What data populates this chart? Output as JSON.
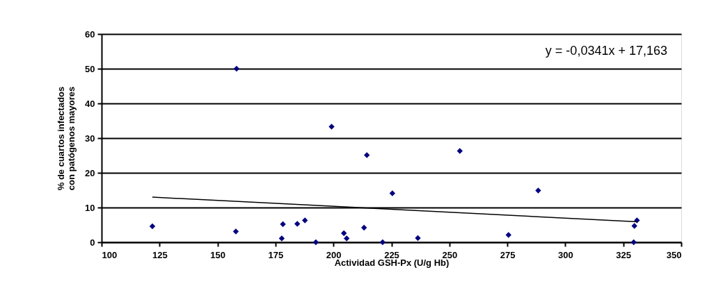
{
  "chart_data": {
    "type": "scatter",
    "xlabel": "Actividad GSH-Px (U/g Hb)",
    "ylabel": "% de cuartos infectados con patógenos mayores",
    "xlim": [
      100,
      350
    ],
    "xticks": [
      100,
      125,
      150,
      175,
      200,
      225,
      250,
      275,
      300,
      325,
      350
    ],
    "ylim": [
      0,
      60
    ],
    "yticks": [
      0,
      10,
      20,
      30,
      40,
      50,
      60
    ],
    "grid": "y",
    "marker": "diamond",
    "annotations": [
      "y = -0,0341x + 17,163"
    ],
    "series": [
      {
        "color": "#000080",
        "x": [
          121.9,
          158.2,
          157.9,
          177.7,
          178.2,
          184.4,
          187.7,
          192.4,
          199.2,
          204.5,
          205.7,
          213.2,
          214.4,
          221.2,
          225.4,
          236.4,
          254.5,
          275.5,
          288.3,
          329.5,
          329.8,
          330.9
        ],
        "values": [
          4.6,
          50,
          3.1,
          1.1,
          5.2,
          5.3,
          6.3,
          0,
          33.3,
          2.6,
          1.1,
          4.2,
          25.1,
          0,
          14.1,
          1.2,
          26.3,
          2.1,
          14.9,
          0,
          4.7,
          6.3
        ]
      },
      {
        "type": "line",
        "marker": "none",
        "color": "#000000",
        "x": [
          121.9,
          330.9
        ],
        "values": [
          13.0,
          5.9
        ]
      }
    ]
  }
}
